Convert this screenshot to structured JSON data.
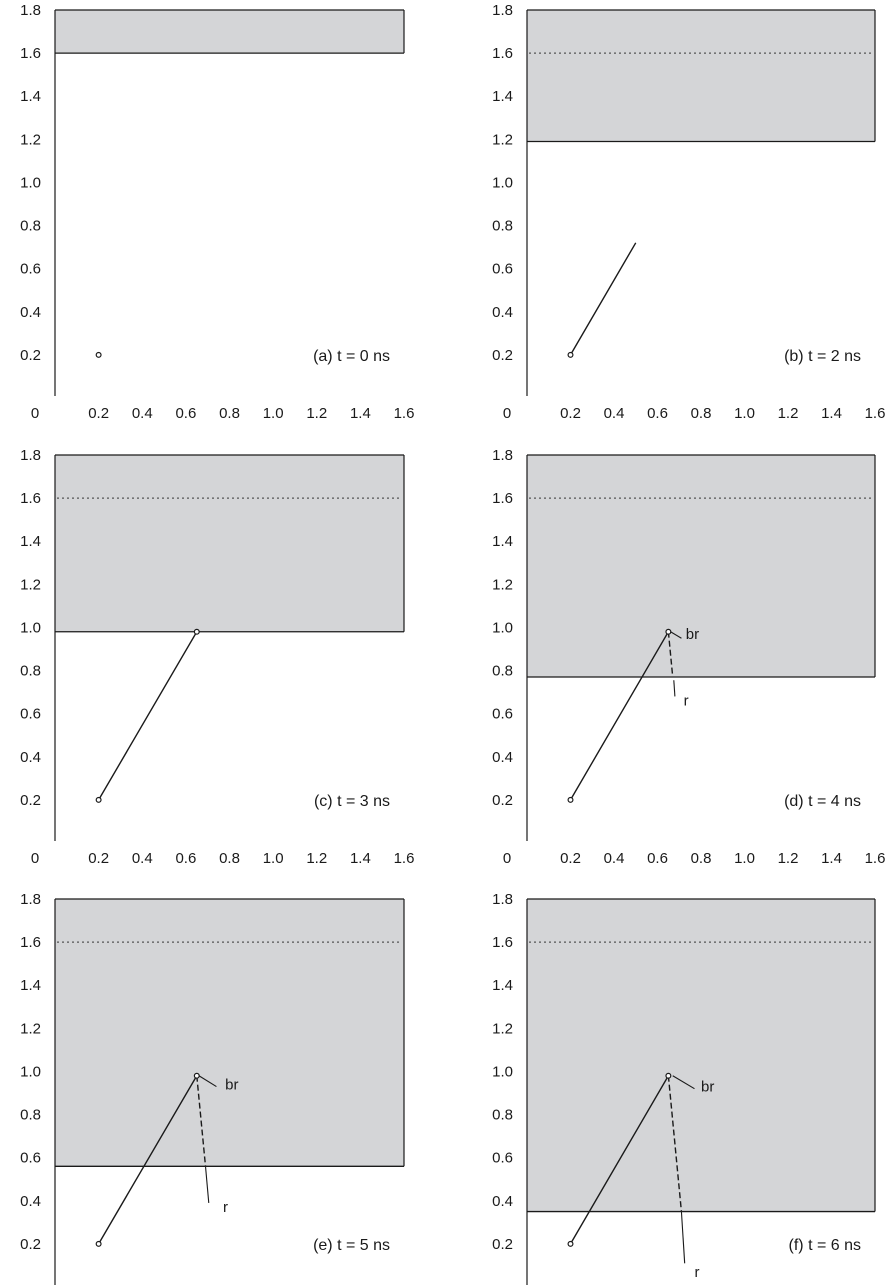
{
  "figure": {
    "colors": {
      "shaded_region": "#d4d5d7",
      "line": "#1a1a1a",
      "axis": "#1a1a1a"
    }
  },
  "chart_data": [
    {
      "type": "line",
      "panel_label": "(a)  t = 0 ns",
      "xlim": [
        0,
        1.6
      ],
      "ylim": [
        0,
        1.8
      ],
      "x_ticks": [
        "0",
        "0.2",
        "0.4",
        "0.6",
        "0.8",
        "1.0",
        "1.2",
        "1.4",
        "1.6"
      ],
      "y_ticks": [
        "0.2",
        "0.4",
        "0.6",
        "0.8",
        "1.0",
        "1.2",
        "1.4",
        "1.6",
        "1.8"
      ],
      "shaded_region_lower_bound_y": 1.6,
      "reference_dotted_line_y": null,
      "grid": false,
      "series": [
        {
          "style": "solid",
          "points": [
            [
              0.2,
              0.2
            ]
          ]
        }
      ],
      "markers": [
        [
          0.2,
          0.2
        ]
      ],
      "annotations": []
    },
    {
      "type": "line",
      "panel_label": "(b)  t = 2 ns",
      "xlim": [
        0,
        1.6
      ],
      "ylim": [
        0,
        1.8
      ],
      "x_ticks": [
        "0",
        "0.2",
        "0.4",
        "0.6",
        "0.8",
        "1.0",
        "1.2",
        "1.4",
        "1.6"
      ],
      "y_ticks": [
        "0.2",
        "0.4",
        "0.6",
        "0.8",
        "1.0",
        "1.2",
        "1.4",
        "1.6",
        "1.8"
      ],
      "shaded_region_lower_bound_y": 1.19,
      "reference_dotted_line_y": 1.6,
      "grid": false,
      "series": [
        {
          "style": "solid",
          "points": [
            [
              0.2,
              0.2
            ],
            [
              0.5,
              0.72
            ]
          ]
        }
      ],
      "markers": [
        [
          0.2,
          0.2
        ]
      ],
      "annotations": []
    },
    {
      "type": "line",
      "panel_label": "(c)  t = 3 ns",
      "xlim": [
        0,
        1.6
      ],
      "ylim": [
        0,
        1.8
      ],
      "x_ticks": [
        "0",
        "0.2",
        "0.4",
        "0.6",
        "0.8",
        "1.0",
        "1.2",
        "1.4",
        "1.6"
      ],
      "y_ticks": [
        "0.2",
        "0.4",
        "0.6",
        "0.8",
        "1.0",
        "1.2",
        "1.4",
        "1.6",
        "1.8"
      ],
      "shaded_region_lower_bound_y": 0.98,
      "reference_dotted_line_y": 1.6,
      "grid": false,
      "series": [
        {
          "style": "solid",
          "points": [
            [
              0.2,
              0.2
            ],
            [
              0.65,
              0.98
            ]
          ]
        }
      ],
      "markers": [
        [
          0.2,
          0.2
        ],
        [
          0.65,
          0.98
        ]
      ],
      "annotations": []
    },
    {
      "type": "line",
      "panel_label": "(d)  t = 4 ns",
      "xlim": [
        0,
        1.6
      ],
      "ylim": [
        0,
        1.8
      ],
      "x_ticks": [
        "0",
        "0.2",
        "0.4",
        "0.6",
        "0.8",
        "1.0",
        "1.2",
        "1.4",
        "1.6"
      ],
      "y_ticks": [
        "0.2",
        "0.4",
        "0.6",
        "0.8",
        "1.0",
        "1.2",
        "1.4",
        "1.6",
        "1.8"
      ],
      "shaded_region_lower_bound_y": 0.77,
      "reference_dotted_line_y": 1.6,
      "grid": false,
      "series": [
        {
          "style": "solid",
          "points": [
            [
              0.2,
              0.2
            ],
            [
              0.65,
              0.98
            ]
          ]
        },
        {
          "style": "dashed",
          "points": [
            [
              0.65,
              0.98
            ],
            [
              0.67,
              0.77
            ]
          ]
        }
      ],
      "markers": [
        [
          0.2,
          0.2
        ],
        [
          0.65,
          0.98
        ]
      ],
      "annotations": [
        {
          "text": "br",
          "x": 0.73,
          "y": 0.97,
          "leader_from": [
            0.66,
            0.98
          ],
          "leader_to": [
            0.71,
            0.95
          ]
        },
        {
          "text": "r",
          "x": 0.72,
          "y": 0.66,
          "leader_from": [
            0.675,
            0.755
          ],
          "leader_to": [
            0.68,
            0.68
          ]
        }
      ]
    },
    {
      "type": "line",
      "panel_label": "(e)  t = 5 ns",
      "xlim": [
        0,
        1.6
      ],
      "ylim": [
        0,
        1.8
      ],
      "x_ticks": [
        "0",
        "0.2",
        "0.4",
        "0.6",
        "0.8",
        "1.0",
        "1.2",
        "1.4",
        "1.6"
      ],
      "y_ticks": [
        "0.2",
        "0.4",
        "0.6",
        "0.8",
        "1.0",
        "1.2",
        "1.4",
        "1.6",
        "1.8"
      ],
      "shaded_region_lower_bound_y": 0.56,
      "reference_dotted_line_y": 1.6,
      "grid": false,
      "series": [
        {
          "style": "solid",
          "points": [
            [
              0.2,
              0.2
            ],
            [
              0.65,
              0.98
            ]
          ]
        },
        {
          "style": "dashed",
          "points": [
            [
              0.65,
              0.98
            ],
            [
              0.69,
              0.56
            ]
          ]
        }
      ],
      "markers": [
        [
          0.2,
          0.2
        ],
        [
          0.65,
          0.98
        ]
      ],
      "annotations": [
        {
          "text": "br",
          "x": 0.78,
          "y": 0.94,
          "leader_from": [
            0.66,
            0.98
          ],
          "leader_to": [
            0.74,
            0.93
          ]
        },
        {
          "text": "r",
          "x": 0.77,
          "y": 0.37,
          "leader_from": [
            0.69,
            0.56
          ],
          "leader_to": [
            0.705,
            0.39
          ]
        }
      ]
    },
    {
      "type": "line",
      "panel_label": "(f)  t = 6 ns",
      "xlim": [
        0,
        1.6
      ],
      "ylim": [
        0,
        1.8
      ],
      "x_ticks": [
        "0",
        "0.2",
        "0.4",
        "0.6",
        "0.8",
        "1.0",
        "1.2",
        "1.4",
        "1.6"
      ],
      "y_ticks": [
        "0.2",
        "0.4",
        "0.6",
        "0.8",
        "1.0",
        "1.2",
        "1.4",
        "1.6",
        "1.8"
      ],
      "shaded_region_lower_bound_y": 0.35,
      "reference_dotted_line_y": 1.6,
      "grid": false,
      "series": [
        {
          "style": "solid",
          "points": [
            [
              0.2,
              0.2
            ],
            [
              0.65,
              0.98
            ]
          ]
        },
        {
          "style": "dashed",
          "points": [
            [
              0.65,
              0.98
            ],
            [
              0.71,
              0.35
            ]
          ]
        }
      ],
      "markers": [
        [
          0.2,
          0.2
        ],
        [
          0.65,
          0.98
        ]
      ],
      "annotations": [
        {
          "text": "br",
          "x": 0.8,
          "y": 0.93,
          "leader_from": [
            0.67,
            0.98
          ],
          "leader_to": [
            0.77,
            0.92
          ]
        },
        {
          "text": "r",
          "x": 0.77,
          "y": 0.07,
          "leader_from": [
            0.71,
            0.35
          ],
          "leader_to": [
            0.725,
            0.11
          ]
        }
      ]
    }
  ]
}
